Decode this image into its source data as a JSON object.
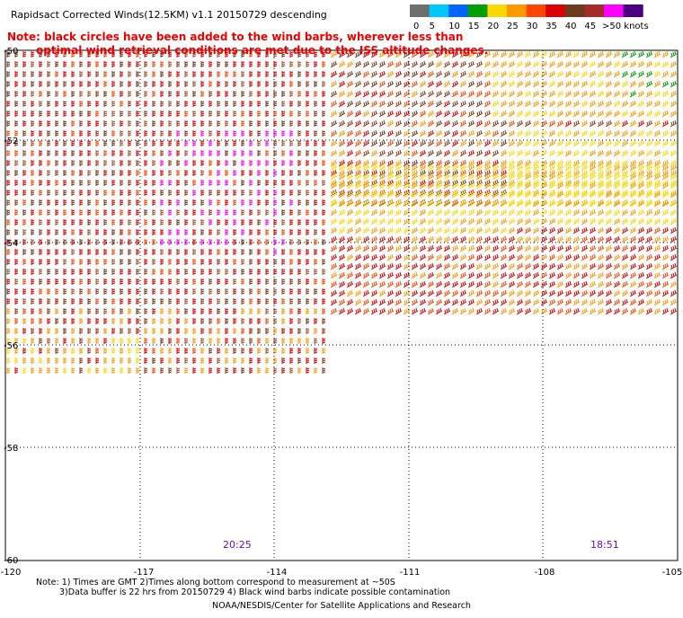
{
  "title": "Rapidsact Corrected Winds(12.5KM) v1.1 20150729 descending",
  "note_line1": "Note: black circles have been added to the wind barbs, wherever less than",
  "note_line2": "optimal wind retrieval conditions are met due to the ISS altitude changes.",
  "legend": {
    "labels": [
      "0",
      "5",
      "10",
      "15",
      "20",
      "25",
      "30",
      "35",
      "40",
      "45",
      ">50 knots"
    ],
    "colors": [
      "#6e6e6e",
      "#00c8ff",
      "#0064ff",
      "#00a000",
      "#ffd700",
      "#ff9900",
      "#ff4500",
      "#dd0000",
      "#6b3a1f",
      "#a52a2a",
      "#ff00ff",
      "#4b0082"
    ]
  },
  "axes": {
    "lon_ticks": [
      "-120",
      "-117",
      "-114",
      "-111",
      "-108",
      "-105"
    ],
    "lat_ticks": [
      "-50",
      "-52",
      "-54",
      "-56",
      "-58",
      "-60"
    ]
  },
  "pass_times": [
    "20:25",
    "18:51"
  ],
  "footer_line1": "Note: 1) Times are GMT 2)Times along bottom correspond to measurement at ~50S",
  "footer_line2": "3)Data buffer is 22 hrs from 20150729 4) Black wind barbs indicate possible contamination",
  "footer_line3": "NOAA/NESDIS/Center for Satellite Applications and Research"
}
